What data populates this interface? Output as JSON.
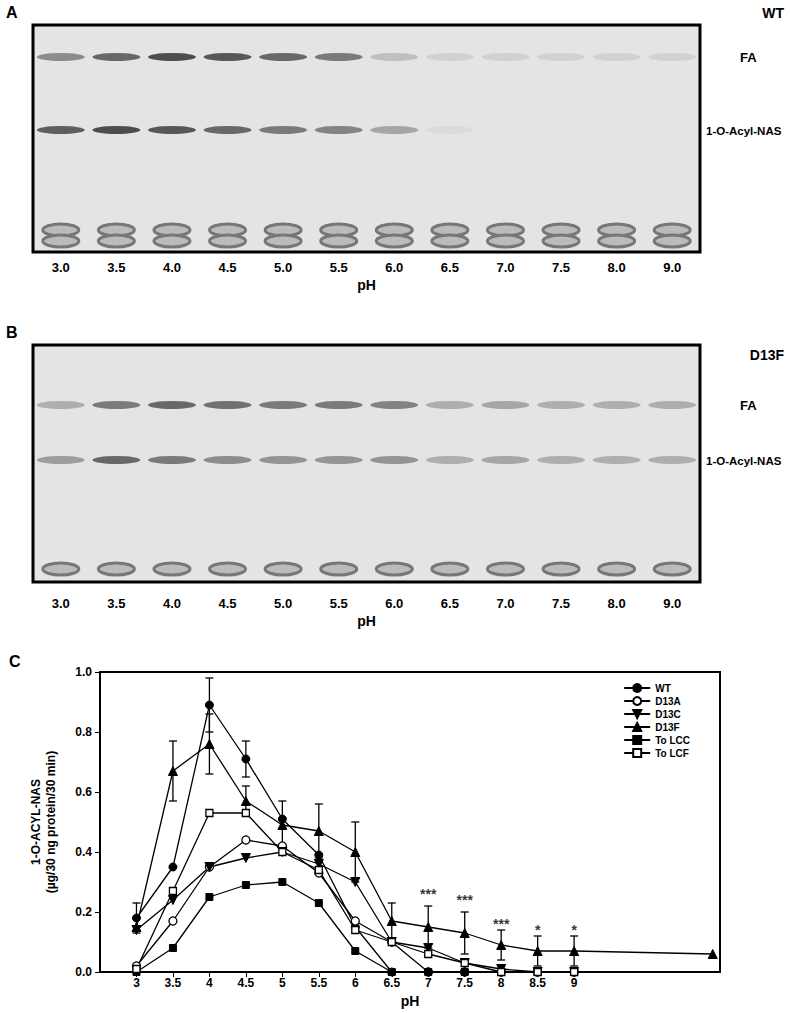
{
  "gels": [
    {
      "panel": "A",
      "tag": "WT",
      "lanes": [
        "3.0",
        "3.5",
        "4.0",
        "4.5",
        "5.0",
        "5.5",
        "6.0",
        "6.5",
        "7.0",
        "7.5",
        "8.0",
        "9.0"
      ],
      "lane_label": "pH",
      "bands": [
        {
          "name": "FA",
          "intensity": [
            0.5,
            0.7,
            0.85,
            0.8,
            0.7,
            0.6,
            0.2,
            0.1,
            0.1,
            0.1,
            0.1,
            0.1
          ]
        },
        {
          "name": "1-O-Acyl-NAS",
          "intensity": [
            0.75,
            0.85,
            0.8,
            0.7,
            0.6,
            0.55,
            0.35,
            0.05,
            0,
            0,
            0,
            0
          ]
        }
      ]
    },
    {
      "panel": "B",
      "tag": "D13F",
      "lanes": [
        "3.0",
        "3.5",
        "4.0",
        "4.5",
        "5.0",
        "5.5",
        "6.0",
        "6.5",
        "7.0",
        "7.5",
        "8.0",
        "9.0"
      ],
      "lane_label": "pH",
      "bands": [
        {
          "name": "FA",
          "intensity": [
            0.3,
            0.6,
            0.7,
            0.65,
            0.6,
            0.6,
            0.55,
            0.3,
            0.35,
            0.3,
            0.3,
            0.3
          ]
        },
        {
          "name": "1-O-Acyl-NAS",
          "intensity": [
            0.4,
            0.7,
            0.6,
            0.5,
            0.45,
            0.45,
            0.45,
            0.3,
            0.35,
            0.3,
            0.3,
            0.3
          ]
        }
      ]
    }
  ],
  "chart_data": {
    "type": "line",
    "title": "C",
    "xlabel": "pH",
    "ylabel": [
      "1-O-ACYL-NAS",
      "(µg/30 ng protein/30 min)"
    ],
    "x": [
      3,
      3.5,
      4,
      4.5,
      5,
      5.5,
      6,
      6.5,
      7,
      7.5,
      8,
      8.5,
      9,
      10.9
    ],
    "xlim": [
      2.5,
      11
    ],
    "xticks": [
      3,
      3.5,
      4,
      4.5,
      5,
      5.5,
      6,
      6.5,
      7,
      7.5,
      8,
      8.5,
      9
    ],
    "ylim": [
      0,
      1
    ],
    "yticks": [
      {
        "value": 0,
        "label": "0.0"
      },
      0.2,
      0.4,
      0.6,
      0.8,
      {
        "value": 1,
        "label": "1.0"
      }
    ],
    "grid": false,
    "legend": "upper right",
    "series": [
      {
        "name": "WT",
        "color": "#000000",
        "marker": "circle",
        "values": [
          0.18,
          0.35,
          0.89,
          0.71,
          0.51,
          0.39,
          0.15,
          0.0,
          0.0,
          0.0,
          0.0,
          0.0,
          0.0,
          null
        ],
        "errors": [
          0.05,
          null,
          0.09,
          0.06,
          null,
          null,
          null,
          null,
          null,
          null,
          null,
          null,
          null,
          null
        ]
      },
      {
        "name": "D13A",
        "color": "#000000",
        "marker": "circle_open",
        "values": [
          0.02,
          0.17,
          0.35,
          0.44,
          0.42,
          0.33,
          0.17,
          0.1,
          0.0,
          0.0,
          0.0,
          0.0,
          0.0,
          null
        ],
        "errors": [
          null,
          null,
          null,
          null,
          null,
          null,
          null,
          null,
          null,
          null,
          null,
          null,
          null,
          null
        ]
      },
      {
        "name": "D13C",
        "color": "#000000",
        "marker": "triangle_down",
        "values": [
          0.14,
          0.24,
          0.35,
          0.38,
          0.4,
          0.36,
          0.3,
          0.1,
          0.08,
          0.03,
          0.01,
          0.0,
          0.0,
          null
        ],
        "errors": [
          null,
          null,
          null,
          null,
          null,
          null,
          null,
          null,
          null,
          null,
          null,
          null,
          null,
          null
        ]
      },
      {
        "name": "D13F",
        "color": "#000000",
        "marker": "triangle",
        "values": [
          0.15,
          0.67,
          0.76,
          0.57,
          0.49,
          0.47,
          0.4,
          0.17,
          0.15,
          0.13,
          0.09,
          0.07,
          0.07,
          0.06
        ],
        "errors": [
          null,
          0.1,
          0.1,
          0.05,
          0.08,
          0.09,
          0.1,
          0.06,
          0.07,
          0.07,
          0.05,
          0.05,
          0.05,
          null
        ]
      },
      {
        "name": "To LCC",
        "color": "#000000",
        "marker": "square",
        "values": [
          0.0,
          0.08,
          0.25,
          0.29,
          0.3,
          0.23,
          0.07,
          0.0,
          0.0,
          0.0,
          0.0,
          0.0,
          0.0,
          null
        ],
        "errors": [
          null,
          null,
          null,
          null,
          null,
          null,
          null,
          null,
          null,
          null,
          null,
          null,
          null,
          null
        ]
      },
      {
        "name": "To LCF",
        "color": "#000000",
        "marker": "square_open",
        "values": [
          0.01,
          0.27,
          0.53,
          0.53,
          0.4,
          0.34,
          0.14,
          0.1,
          0.06,
          0.03,
          0.0,
          0.0,
          0.0,
          null
        ],
        "errors": [
          null,
          null,
          null,
          null,
          null,
          null,
          null,
          null,
          null,
          null,
          null,
          null,
          null,
          null
        ]
      }
    ],
    "annotations": [
      {
        "x": 7,
        "y": 0.26,
        "text": "***"
      },
      {
        "x": 7.5,
        "y": 0.24,
        "text": "***"
      },
      {
        "x": 8,
        "y": 0.16,
        "text": "***"
      },
      {
        "x": 8.5,
        "y": 0.14,
        "text": "*"
      },
      {
        "x": 9,
        "y": 0.14,
        "text": "*"
      }
    ]
  }
}
